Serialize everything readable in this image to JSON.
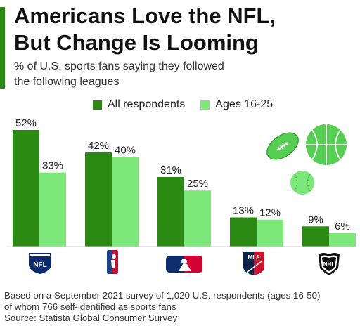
{
  "header": {
    "title_line1": "Americans Love the NFL,",
    "title_line2": "But Change Is Looming",
    "subtitle_line1": "% of U.S. sports fans saying they followed",
    "subtitle_line2": "the following leagues"
  },
  "legend": [
    {
      "label": "All respondents",
      "color": "#2a8a12"
    },
    {
      "label": "Ages 16-25",
      "color": "#7de87a"
    }
  ],
  "chart_data": {
    "type": "bar",
    "categories": [
      "NFL",
      "NBA",
      "MLB",
      "MLS",
      "NHL"
    ],
    "series": [
      {
        "name": "All respondents",
        "color": "#2a8a12",
        "values": [
          52,
          42,
          31,
          13,
          9
        ]
      },
      {
        "name": "Ages 16-25",
        "color": "#7de87a",
        "values": [
          33,
          40,
          25,
          12,
          6
        ]
      }
    ],
    "value_suffix": "%",
    "ylim": [
      0,
      52
    ],
    "grid": false,
    "legend_position": "top"
  },
  "logos": {
    "nfl": "NFL",
    "mls": "MLS",
    "nhl": "NHL"
  },
  "footer": {
    "note_line1": "Based on a September 2021 survey of 1,020 U.S. respondents (ages 16-50)",
    "note_line2": "of whom 766 self-identified as sports fans",
    "source": "Source: Statista Global Consumer Survey"
  }
}
